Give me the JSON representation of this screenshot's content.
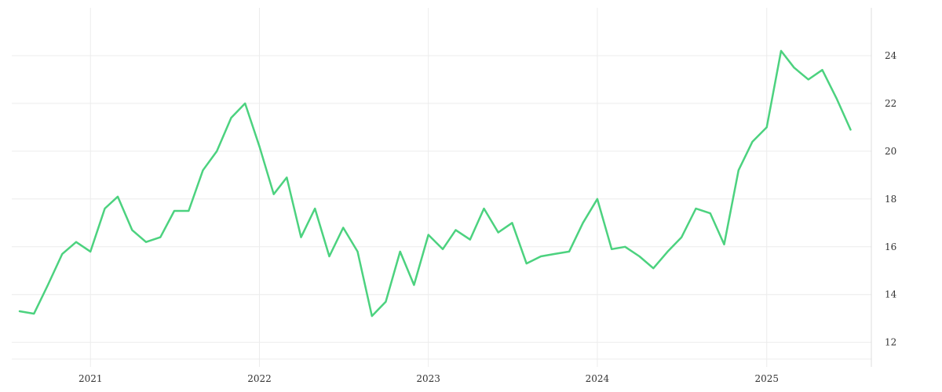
{
  "chart_data": {
    "type": "line",
    "title": "",
    "xlabel": "",
    "ylabel": "",
    "x_tick_labels": [
      "2021",
      "2022",
      "2023",
      "2024",
      "2025"
    ],
    "y_tick_labels": [
      "12",
      "14",
      "16",
      "18",
      "20",
      "22",
      "24"
    ],
    "y_ticks": [
      12,
      14,
      16,
      18,
      20,
      22,
      24
    ],
    "ylim": [
      11.3,
      26.0
    ],
    "xlim": [
      "2020-07-15",
      "2025-08-15"
    ],
    "grid": true,
    "y_axis_position": "right",
    "legend": "none",
    "line_color": "#4cd27f",
    "series": [
      {
        "name": "",
        "x": [
          "2020-08-01",
          "2020-09-01",
          "2020-10-01",
          "2020-11-01",
          "2020-12-01",
          "2021-01-01",
          "2021-02-01",
          "2021-03-01",
          "2021-04-01",
          "2021-05-01",
          "2021-06-01",
          "2021-07-01",
          "2021-08-01",
          "2021-09-01",
          "2021-10-01",
          "2021-11-01",
          "2021-12-01",
          "2022-01-01",
          "2022-02-01",
          "2022-03-01",
          "2022-04-01",
          "2022-05-01",
          "2022-06-01",
          "2022-07-01",
          "2022-08-01",
          "2022-09-01",
          "2022-10-01",
          "2022-11-01",
          "2022-12-01",
          "2023-01-01",
          "2023-02-01",
          "2023-03-01",
          "2023-04-01",
          "2023-05-01",
          "2023-06-01",
          "2023-07-01",
          "2023-08-01",
          "2023-09-01",
          "2023-10-01",
          "2023-11-01",
          "2023-12-01",
          "2024-01-01",
          "2024-02-01",
          "2024-03-01",
          "2024-04-01",
          "2024-05-01",
          "2024-06-01",
          "2024-07-01",
          "2024-08-01",
          "2024-09-01",
          "2024-10-01",
          "2024-11-01",
          "2024-12-01",
          "2025-01-01",
          "2025-02-01",
          "2025-03-01",
          "2025-04-01",
          "2025-05-01",
          "2025-06-01",
          "2025-07-01"
        ],
        "values": [
          13.3,
          13.2,
          14.4,
          15.7,
          16.2,
          15.8,
          17.6,
          18.1,
          16.7,
          16.2,
          16.4,
          17.5,
          17.5,
          19.2,
          20.0,
          21.4,
          22.0,
          20.2,
          18.2,
          18.9,
          16.4,
          17.6,
          15.6,
          16.8,
          15.8,
          13.1,
          13.7,
          15.8,
          14.4,
          16.5,
          15.9,
          16.7,
          16.3,
          17.6,
          16.6,
          17.0,
          15.3,
          15.6,
          15.7,
          15.8,
          17.0,
          18.0,
          15.9,
          16.0,
          15.6,
          15.1,
          15.8,
          16.4,
          17.6,
          17.4,
          16.1,
          19.2,
          20.4,
          21.0,
          24.2,
          23.5,
          23.0,
          23.4,
          22.2,
          20.9
        ]
      }
    ]
  }
}
